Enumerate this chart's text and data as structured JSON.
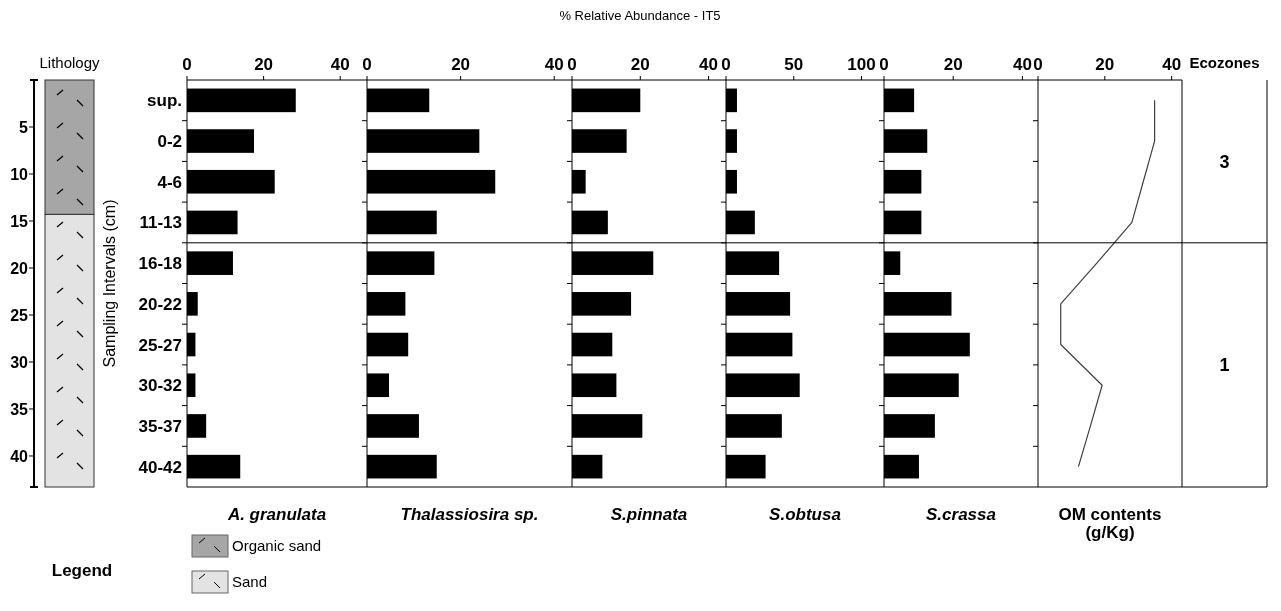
{
  "chart_data": [
    {
      "type": "other",
      "title": "% Relative Abundance - IT5"
    },
    {
      "type": "bar",
      "title": "Lithology",
      "stacked": true,
      "categories": [
        null
      ],
      "series": [
        {
          "name": "Organic sand",
          "color": "#a6a6a6",
          "values": [
            14.3
          ]
        },
        {
          "name": "Sand",
          "color": "#e3e3e3",
          "values": [
            29.0
          ]
        }
      ],
      "ylim": [
        43.3,
        0
      ],
      "yticks": [
        5,
        10,
        15,
        20,
        25,
        30,
        35,
        40
      ],
      "legend": "bottom",
      "legend_title": "Legend"
    },
    {
      "type": "bar",
      "orientation": "horizontal",
      "ylabel": "Sampling Intervals (cm)",
      "xlabel": "A. granulata",
      "categories": [
        "sup.",
        "0-2",
        "4-6",
        "11-13",
        "16-18",
        "20-22",
        "25-27",
        "30-32",
        "35-37",
        "40-42"
      ],
      "values": [
        28.4,
        17.5,
        22.9,
        13.2,
        12.0,
        2.8,
        2.2,
        2.2,
        5.0,
        13.9
      ],
      "color": "#000000",
      "xlim": [
        0,
        47
      ],
      "xticks": [
        0,
        20,
        40
      ]
    },
    {
      "type": "bar",
      "orientation": "horizontal",
      "xlabel": "Thalassiosira sp.",
      "categories": [
        null,
        null,
        null,
        null,
        null,
        null,
        null,
        null,
        null,
        null
      ],
      "values": [
        13.3,
        24.0,
        27.4,
        14.9,
        14.4,
        8.2,
        8.8,
        4.7,
        11.1,
        14.9
      ],
      "color": "#000000",
      "xlim": [
        0,
        43.8
      ],
      "xticks": [
        0,
        20,
        40
      ],
      "tick_labels": "x"
    },
    {
      "type": "bar",
      "orientation": "horizontal",
      "xlabel": "S.pinnata",
      "categories": [
        null,
        null,
        null,
        null,
        null,
        null,
        null,
        null,
        null,
        null
      ],
      "values": [
        20.0,
        16.0,
        4.0,
        10.5,
        23.8,
        17.3,
        11.8,
        13.0,
        20.6,
        8.9
      ],
      "color": "#000000",
      "xlim": [
        0,
        45.1
      ],
      "xticks": [
        0,
        20,
        40
      ],
      "tick_labels": "x"
    },
    {
      "type": "bar",
      "orientation": "horizontal",
      "xlabel": "S.obtusa",
      "categories": [
        null,
        null,
        null,
        null,
        null,
        null,
        null,
        null,
        null,
        null
      ],
      "values": [
        8.1,
        8.1,
        8.1,
        21.3,
        39.2,
        47.3,
        49.0,
        54.4,
        41.2,
        29.2
      ],
      "color": "#000000",
      "xlim": [
        0,
        116.6
      ],
      "xticks": [
        0,
        50,
        100
      ],
      "tick_labels": "x"
    },
    {
      "type": "bar",
      "orientation": "horizontal",
      "xlabel": "S.crassa",
      "categories": [
        null,
        null,
        null,
        null,
        null,
        null,
        null,
        null,
        null,
        null
      ],
      "values": [
        8.7,
        12.5,
        10.8,
        10.8,
        4.7,
        19.5,
        24.8,
        21.6,
        14.7,
        10.1
      ],
      "color": "#000000",
      "xlim": [
        0,
        44.5
      ],
      "xticks": [
        0,
        20,
        40
      ],
      "tick_labels": "x"
    },
    {
      "type": "line",
      "orientation": "horizontal",
      "xlabel": "OM contents (g/Kg)",
      "categories": [
        null,
        null,
        null,
        null,
        null,
        null,
        null,
        null,
        null,
        null
      ],
      "values": [
        34.9,
        34.9,
        31.5,
        28.1,
        17.6,
        6.8,
        6.8,
        19.2,
        15.7,
        12.1
      ],
      "color": "#404040",
      "xlim": [
        0,
        43.1
      ],
      "xticks": [
        0,
        20,
        40
      ],
      "tick_labels": "x"
    },
    {
      "type": "other",
      "title": "Ecozones",
      "annotations": [
        "3",
        "1"
      ]
    }
  ]
}
